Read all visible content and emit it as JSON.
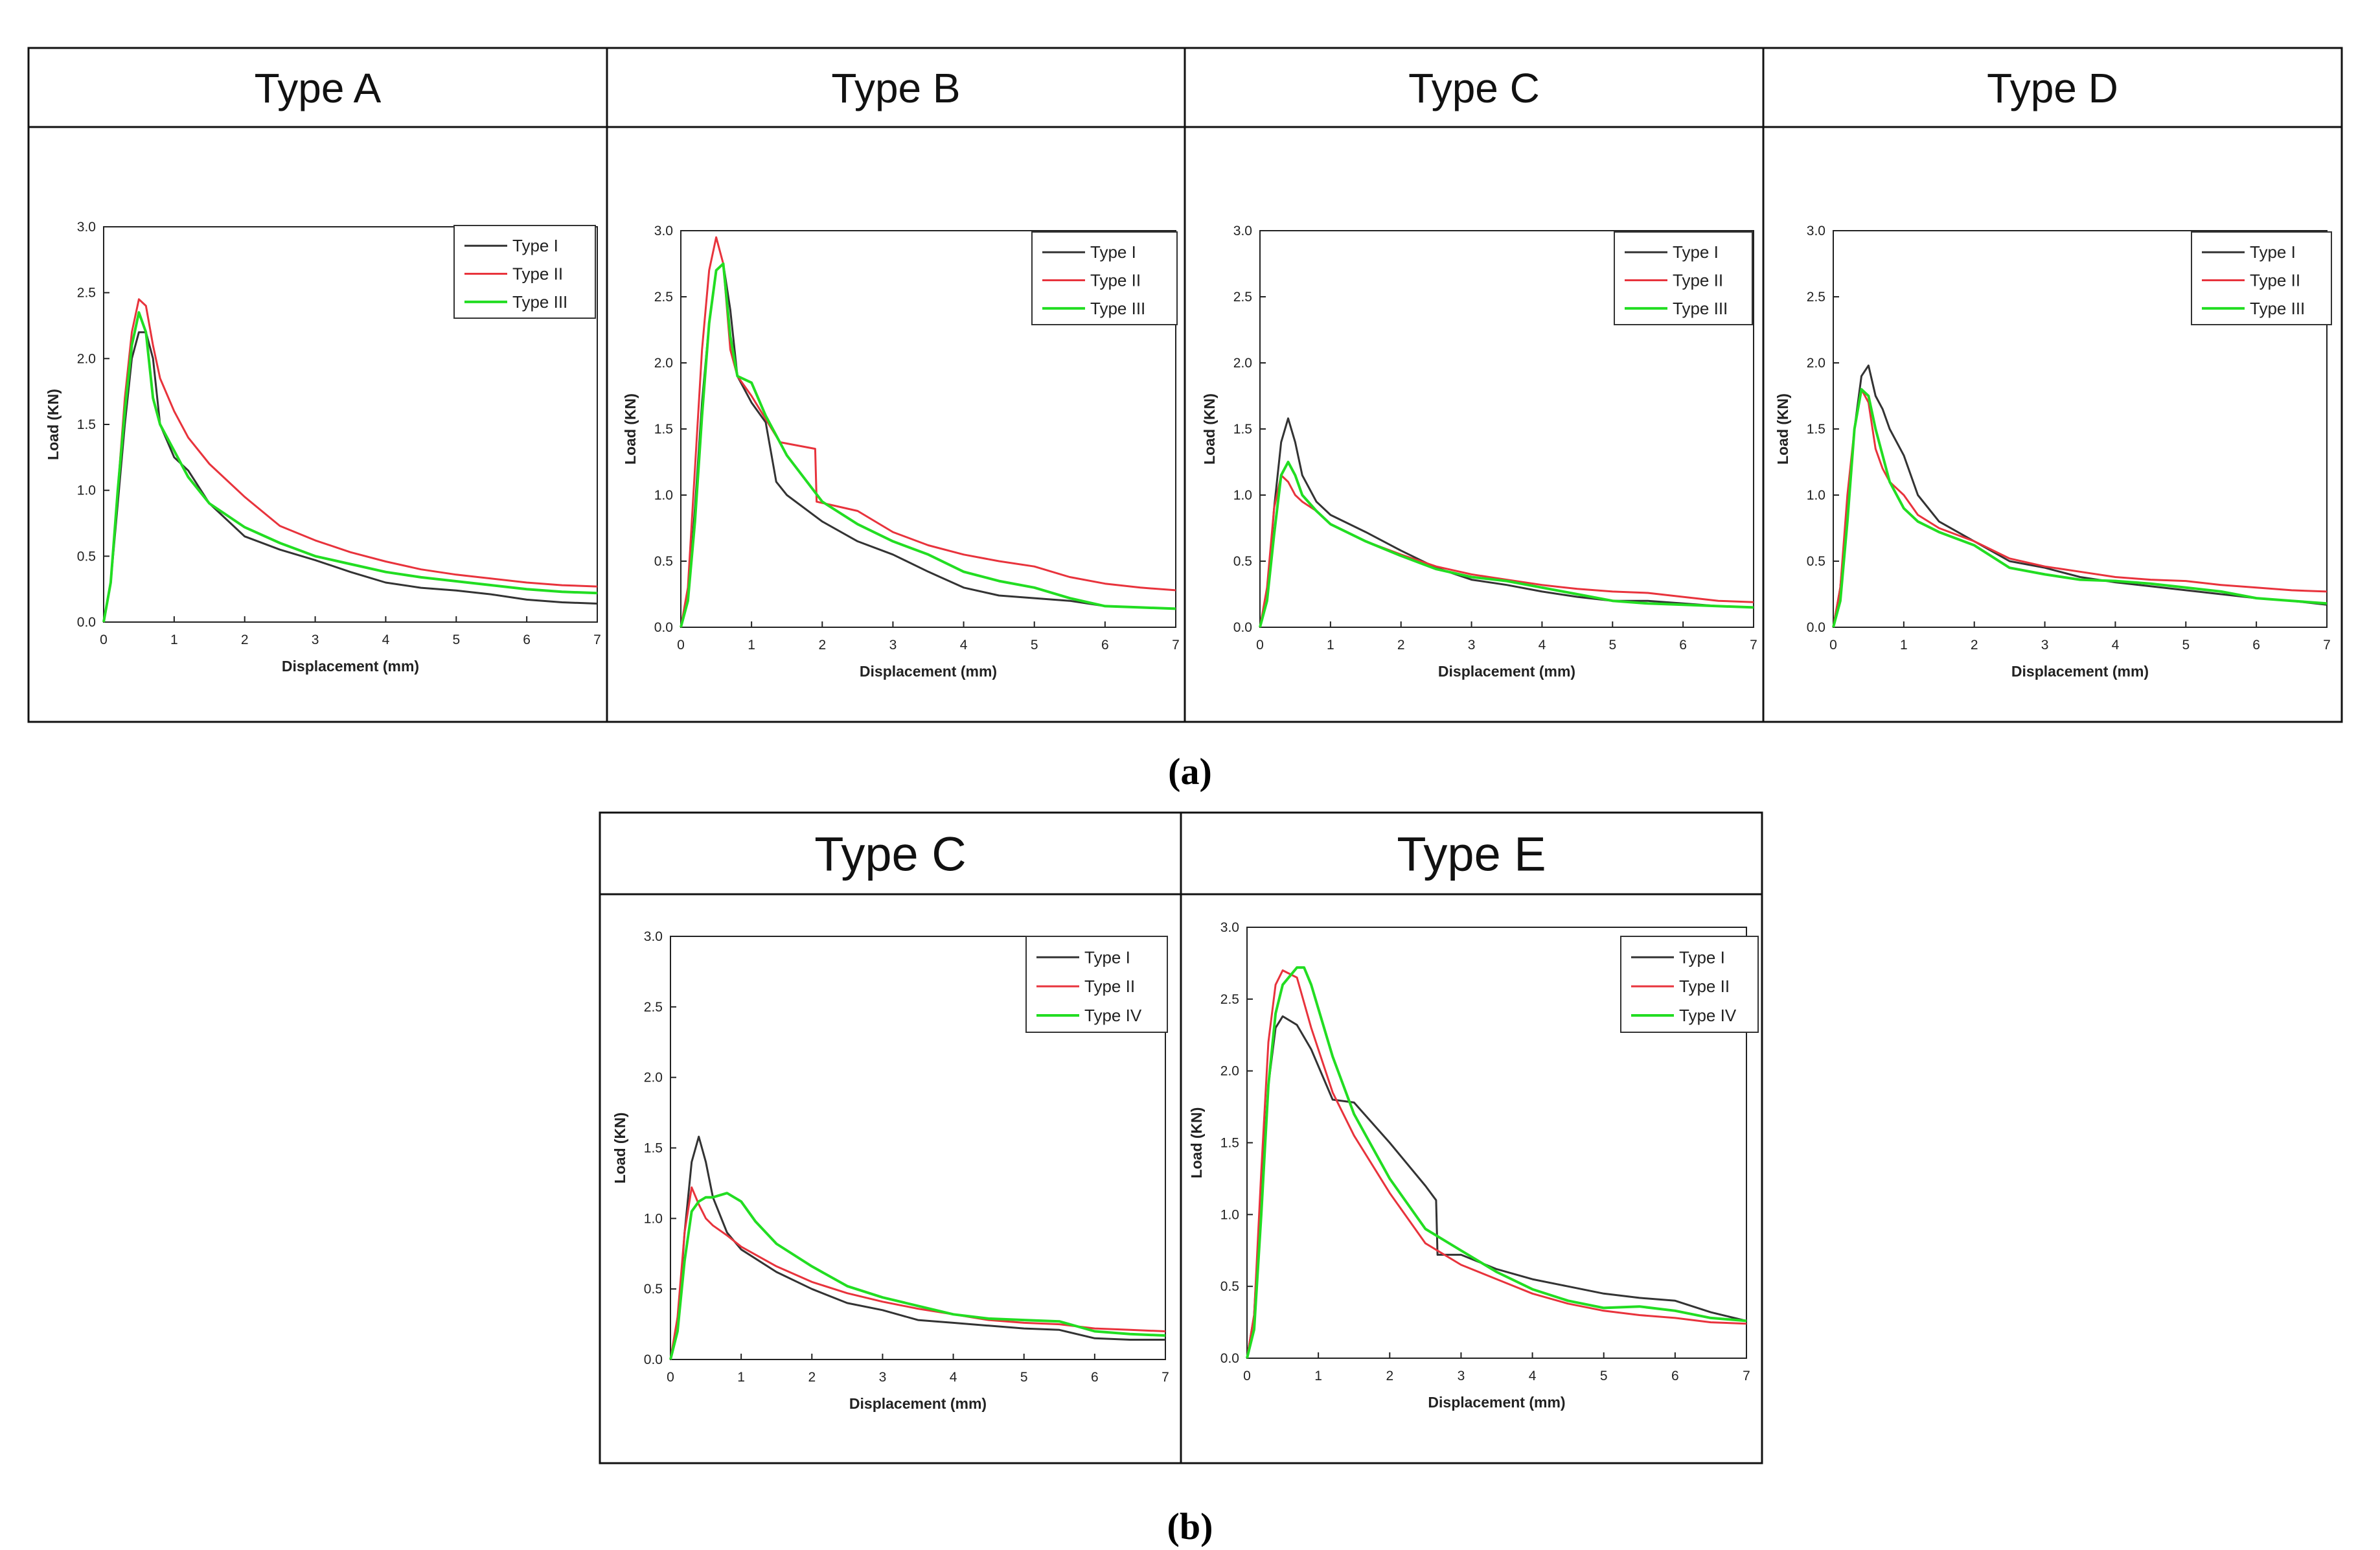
{
  "colors": {
    "type1": "#333333",
    "type2": "#e8333c",
    "type3": "#22dd22",
    "frame": "#111111"
  },
  "panel_labels": {
    "a": "(a)",
    "b": "(b)"
  },
  "chart_data": [
    {
      "id": "a1",
      "title": "Type A",
      "type": "line",
      "xlabel": "Displacement (mm)",
      "ylabel": "Load (KN)",
      "xlim": [
        0,
        7
      ],
      "ylim": [
        0,
        3
      ],
      "xticks": [
        "0",
        "1",
        "2",
        "3",
        "4",
        "5",
        "6",
        "7"
      ],
      "yticks": [
        "0.0",
        "0.5",
        "1.0",
        "1.5",
        "2.0",
        "2.5",
        "3.0"
      ],
      "series": [
        {
          "name": "Type I",
          "color_key": "type1",
          "x": [
            0,
            0.1,
            0.2,
            0.3,
            0.4,
            0.5,
            0.6,
            0.7,
            0.8,
            1.0,
            1.2,
            1.5,
            2.0,
            2.5,
            3.0,
            3.5,
            4.0,
            4.5,
            5.0,
            5.5,
            6.0,
            6.5,
            7.0
          ],
          "y": [
            0,
            0.3,
            0.9,
            1.5,
            2.0,
            2.2,
            2.2,
            2.0,
            1.5,
            1.25,
            1.15,
            0.9,
            0.65,
            0.55,
            0.47,
            0.38,
            0.3,
            0.26,
            0.24,
            0.21,
            0.17,
            0.15,
            0.14
          ]
        },
        {
          "name": "Type II",
          "color_key": "type2",
          "x": [
            0,
            0.1,
            0.2,
            0.3,
            0.4,
            0.5,
            0.6,
            0.7,
            0.8,
            1.0,
            1.2,
            1.5,
            2.0,
            2.5,
            3.0,
            3.5,
            4.0,
            4.5,
            5.0,
            5.5,
            6.0,
            6.5,
            7.0
          ],
          "y": [
            0,
            0.3,
            1.0,
            1.7,
            2.2,
            2.45,
            2.4,
            2.1,
            1.85,
            1.6,
            1.4,
            1.2,
            0.95,
            0.73,
            0.62,
            0.53,
            0.46,
            0.4,
            0.36,
            0.33,
            0.3,
            0.28,
            0.27
          ]
        },
        {
          "name": "Type III",
          "color_key": "type3",
          "x": [
            0,
            0.1,
            0.2,
            0.3,
            0.4,
            0.5,
            0.6,
            0.7,
            0.8,
            1.0,
            1.2,
            1.5,
            2.0,
            2.5,
            3.0,
            3.5,
            4.0,
            4.5,
            5.0,
            5.5,
            6.0,
            6.5,
            7.0
          ],
          "y": [
            0,
            0.3,
            1.0,
            1.6,
            2.1,
            2.35,
            2.2,
            1.7,
            1.5,
            1.3,
            1.1,
            0.9,
            0.72,
            0.6,
            0.5,
            0.44,
            0.38,
            0.34,
            0.31,
            0.28,
            0.25,
            0.23,
            0.22
          ]
        }
      ]
    },
    {
      "id": "a2",
      "title": "Type B",
      "type": "line",
      "xlabel": "Displacement (mm)",
      "ylabel": "Load (KN)",
      "xlim": [
        0,
        7
      ],
      "ylim": [
        0,
        3
      ],
      "xticks": [
        "0",
        "1",
        "2",
        "3",
        "4",
        "5",
        "6",
        "7"
      ],
      "yticks": [
        "0.0",
        "0.5",
        "1.0",
        "1.5",
        "2.0",
        "2.5",
        "3.0"
      ],
      "series": [
        {
          "name": "Type I",
          "color_key": "type1",
          "x": [
            0,
            0.1,
            0.2,
            0.3,
            0.4,
            0.5,
            0.6,
            0.7,
            0.8,
            1.0,
            1.2,
            1.35,
            1.5,
            2.0,
            2.5,
            3.0,
            3.5,
            4.0,
            4.5,
            5.0,
            5.5,
            6.0,
            6.5,
            7.0
          ],
          "y": [
            0,
            0.2,
            0.9,
            1.7,
            2.3,
            2.7,
            2.75,
            2.4,
            1.9,
            1.7,
            1.55,
            1.1,
            1.0,
            0.8,
            0.65,
            0.55,
            0.42,
            0.3,
            0.24,
            0.22,
            0.2,
            0.16,
            0.15,
            0.14
          ]
        },
        {
          "name": "Type II",
          "color_key": "type2",
          "x": [
            0,
            0.1,
            0.2,
            0.3,
            0.4,
            0.5,
            0.6,
            0.7,
            0.8,
            1.0,
            1.4,
            1.6,
            1.9,
            1.92,
            2.5,
            3.0,
            3.5,
            4.0,
            4.5,
            5.0,
            5.5,
            6.0,
            6.5,
            7.0
          ],
          "y": [
            0,
            0.3,
            1.2,
            2.1,
            2.7,
            2.95,
            2.75,
            2.1,
            1.9,
            1.75,
            1.4,
            1.38,
            1.35,
            0.95,
            0.88,
            0.72,
            0.62,
            0.55,
            0.5,
            0.46,
            0.38,
            0.33,
            0.3,
            0.28
          ]
        },
        {
          "name": "Type III",
          "color_key": "type3",
          "x": [
            0,
            0.1,
            0.2,
            0.3,
            0.4,
            0.5,
            0.6,
            0.7,
            0.8,
            1.0,
            1.2,
            1.5,
            2.0,
            2.5,
            3.0,
            3.5,
            4.0,
            4.5,
            5.0,
            5.5,
            6.0,
            6.5,
            7.0
          ],
          "y": [
            0,
            0.2,
            0.8,
            1.6,
            2.3,
            2.7,
            2.75,
            2.2,
            1.9,
            1.85,
            1.6,
            1.3,
            0.95,
            0.78,
            0.65,
            0.55,
            0.42,
            0.35,
            0.3,
            0.22,
            0.16,
            0.15,
            0.14
          ]
        }
      ]
    },
    {
      "id": "a3",
      "title": "Type C",
      "type": "line",
      "xlabel": "Displacement (mm)",
      "ylabel": "Load (KN)",
      "xlim": [
        0,
        7
      ],
      "ylim": [
        0,
        3
      ],
      "xticks": [
        "0",
        "1",
        "2",
        "3",
        "4",
        "5",
        "6",
        "7"
      ],
      "yticks": [
        "0.0",
        "0.5",
        "1.0",
        "1.5",
        "2.0",
        "2.5",
        "3.0"
      ],
      "series": [
        {
          "name": "Type I",
          "color_key": "type1",
          "x": [
            0,
            0.1,
            0.2,
            0.3,
            0.4,
            0.5,
            0.6,
            0.8,
            1.0,
            1.5,
            2.0,
            2.5,
            3.0,
            3.5,
            4.0,
            4.5,
            5.0,
            5.5,
            6.0,
            6.5,
            7.0
          ],
          "y": [
            0,
            0.2,
            0.9,
            1.4,
            1.58,
            1.4,
            1.15,
            0.95,
            0.85,
            0.72,
            0.58,
            0.45,
            0.36,
            0.32,
            0.27,
            0.23,
            0.2,
            0.2,
            0.18,
            0.16,
            0.15
          ]
        },
        {
          "name": "Type II",
          "color_key": "type2",
          "x": [
            0,
            0.1,
            0.2,
            0.3,
            0.4,
            0.5,
            0.6,
            0.8,
            1.0,
            1.5,
            2.0,
            2.5,
            3.0,
            3.5,
            4.0,
            4.5,
            5.0,
            5.5,
            6.0,
            6.5,
            7.0
          ],
          "y": [
            0,
            0.3,
            0.9,
            1.15,
            1.1,
            1.0,
            0.95,
            0.88,
            0.78,
            0.65,
            0.55,
            0.46,
            0.4,
            0.36,
            0.32,
            0.29,
            0.27,
            0.26,
            0.23,
            0.2,
            0.19
          ]
        },
        {
          "name": "Type III",
          "color_key": "type3",
          "x": [
            0,
            0.1,
            0.2,
            0.3,
            0.4,
            0.5,
            0.6,
            0.8,
            1.0,
            1.5,
            2.0,
            2.5,
            3.0,
            3.5,
            4.0,
            4.5,
            5.0,
            5.5,
            6.0,
            6.5,
            7.0
          ],
          "y": [
            0,
            0.2,
            0.7,
            1.15,
            1.25,
            1.15,
            1.0,
            0.88,
            0.78,
            0.65,
            0.54,
            0.44,
            0.38,
            0.35,
            0.3,
            0.25,
            0.2,
            0.18,
            0.17,
            0.16,
            0.15
          ]
        }
      ]
    },
    {
      "id": "a4",
      "title": "Type D",
      "type": "line",
      "xlabel": "Displacement (mm)",
      "ylabel": "Load (KN)",
      "xlim": [
        0,
        7
      ],
      "ylim": [
        0,
        3
      ],
      "xticks": [
        "0",
        "1",
        "2",
        "3",
        "4",
        "5",
        "6",
        "7"
      ],
      "yticks": [
        "0.0",
        "0.5",
        "1.0",
        "1.5",
        "2.0",
        "2.5",
        "3.0"
      ],
      "series": [
        {
          "name": "Type I",
          "color_key": "type1",
          "x": [
            0,
            0.1,
            0.2,
            0.3,
            0.4,
            0.5,
            0.6,
            0.7,
            0.8,
            1.0,
            1.2,
            1.5,
            2.0,
            2.5,
            3.0,
            3.5,
            4.0,
            4.5,
            5.0,
            5.5,
            6.0,
            6.5,
            7.0
          ],
          "y": [
            0,
            0.3,
            0.9,
            1.5,
            1.9,
            1.98,
            1.75,
            1.65,
            1.5,
            1.3,
            1.0,
            0.8,
            0.65,
            0.5,
            0.45,
            0.38,
            0.34,
            0.31,
            0.28,
            0.25,
            0.22,
            0.2,
            0.17
          ]
        },
        {
          "name": "Type II",
          "color_key": "type2",
          "x": [
            0,
            0.1,
            0.2,
            0.3,
            0.4,
            0.5,
            0.6,
            0.7,
            0.8,
            1.0,
            1.2,
            1.5,
            2.0,
            2.5,
            3.0,
            3.5,
            4.0,
            4.5,
            5.0,
            5.5,
            6.0,
            6.5,
            7.0
          ],
          "y": [
            0,
            0.3,
            1.0,
            1.5,
            1.8,
            1.7,
            1.35,
            1.2,
            1.1,
            1.0,
            0.85,
            0.75,
            0.65,
            0.52,
            0.46,
            0.42,
            0.38,
            0.36,
            0.35,
            0.32,
            0.3,
            0.28,
            0.27
          ]
        },
        {
          "name": "Type III",
          "color_key": "type3",
          "x": [
            0,
            0.1,
            0.2,
            0.3,
            0.4,
            0.5,
            0.6,
            0.7,
            0.8,
            1.0,
            1.2,
            1.5,
            2.0,
            2.5,
            3.0,
            3.5,
            4.0,
            4.5,
            5.0,
            5.5,
            6.0,
            6.5,
            7.0
          ],
          "y": [
            0,
            0.2,
            0.8,
            1.5,
            1.8,
            1.75,
            1.5,
            1.3,
            1.1,
            0.9,
            0.8,
            0.72,
            0.62,
            0.45,
            0.4,
            0.36,
            0.35,
            0.33,
            0.3,
            0.27,
            0.22,
            0.2,
            0.18
          ]
        }
      ]
    },
    {
      "id": "b1",
      "title": "Type C",
      "type": "line",
      "xlabel": "Displacement (mm)",
      "ylabel": "Load (KN)",
      "xlim": [
        0,
        7
      ],
      "ylim": [
        0,
        3
      ],
      "xticks": [
        "0",
        "1",
        "2",
        "3",
        "4",
        "5",
        "6",
        "7"
      ],
      "yticks": [
        "0.0",
        "0.5",
        "1.0",
        "1.5",
        "2.0",
        "2.5",
        "3.0"
      ],
      "series": [
        {
          "name": "Type I",
          "color_key": "type1",
          "x": [
            0,
            0.1,
            0.2,
            0.3,
            0.4,
            0.5,
            0.6,
            0.8,
            1.0,
            1.5,
            2.0,
            2.5,
            3.0,
            3.5,
            4.0,
            4.5,
            5.0,
            5.5,
            6.0,
            6.5,
            7.0
          ],
          "y": [
            0,
            0.2,
            0.9,
            1.4,
            1.58,
            1.4,
            1.15,
            0.9,
            0.78,
            0.62,
            0.5,
            0.4,
            0.35,
            0.28,
            0.26,
            0.24,
            0.22,
            0.21,
            0.15,
            0.14,
            0.14
          ]
        },
        {
          "name": "Type II",
          "color_key": "type2",
          "x": [
            0,
            0.1,
            0.2,
            0.3,
            0.4,
            0.5,
            0.6,
            0.8,
            1.0,
            1.5,
            2.0,
            2.5,
            3.0,
            3.5,
            4.0,
            4.5,
            5.0,
            5.5,
            6.0,
            6.5,
            7.0
          ],
          "y": [
            0,
            0.3,
            0.9,
            1.22,
            1.1,
            1.0,
            0.95,
            0.88,
            0.8,
            0.66,
            0.55,
            0.47,
            0.41,
            0.36,
            0.32,
            0.28,
            0.26,
            0.25,
            0.22,
            0.21,
            0.2
          ]
        },
        {
          "name": "Type IV",
          "color_key": "type3",
          "x": [
            0,
            0.1,
            0.2,
            0.3,
            0.4,
            0.5,
            0.6,
            0.8,
            1.0,
            1.2,
            1.5,
            2.0,
            2.5,
            3.0,
            3.5,
            4.0,
            4.5,
            5.0,
            5.5,
            6.0,
            6.5,
            7.0
          ],
          "y": [
            0,
            0.2,
            0.7,
            1.05,
            1.12,
            1.15,
            1.15,
            1.18,
            1.12,
            0.98,
            0.82,
            0.66,
            0.52,
            0.44,
            0.38,
            0.32,
            0.29,
            0.28,
            0.27,
            0.2,
            0.18,
            0.17
          ]
        }
      ]
    },
    {
      "id": "b2",
      "title": "Type E",
      "type": "line",
      "xlabel": "Displacement (mm)",
      "ylabel": "Load (KN)",
      "xlim": [
        0,
        7
      ],
      "ylim": [
        0,
        3
      ],
      "xticks": [
        "0",
        "1",
        "2",
        "3",
        "4",
        "5",
        "6",
        "7"
      ],
      "yticks": [
        "0.0",
        "0.5",
        "1.0",
        "1.5",
        "2.0",
        "2.5",
        "3.0"
      ],
      "series": [
        {
          "name": "Type I",
          "color_key": "type1",
          "x": [
            0,
            0.1,
            0.2,
            0.3,
            0.4,
            0.5,
            0.7,
            0.9,
            1.2,
            1.5,
            2.0,
            2.5,
            2.65,
            2.67,
            3.0,
            3.5,
            4.0,
            4.5,
            5.0,
            5.5,
            6.0,
            6.5,
            7.0
          ],
          "y": [
            0,
            0.3,
            1.2,
            1.9,
            2.3,
            2.38,
            2.32,
            2.15,
            1.8,
            1.78,
            1.5,
            1.2,
            1.1,
            0.72,
            0.72,
            0.62,
            0.55,
            0.5,
            0.45,
            0.42,
            0.4,
            0.32,
            0.26
          ]
        },
        {
          "name": "Type II",
          "color_key": "type2",
          "x": [
            0,
            0.1,
            0.2,
            0.3,
            0.4,
            0.5,
            0.7,
            0.9,
            1.2,
            1.5,
            2.0,
            2.5,
            3.0,
            3.5,
            4.0,
            4.5,
            5.0,
            5.5,
            6.0,
            6.5,
            7.0
          ],
          "y": [
            0,
            0.3,
            1.3,
            2.2,
            2.6,
            2.7,
            2.65,
            2.3,
            1.85,
            1.55,
            1.15,
            0.8,
            0.65,
            0.55,
            0.45,
            0.38,
            0.33,
            0.3,
            0.28,
            0.25,
            0.24
          ]
        },
        {
          "name": "Type IV",
          "color_key": "type3",
          "x": [
            0,
            0.1,
            0.2,
            0.3,
            0.4,
            0.5,
            0.7,
            0.8,
            0.9,
            1.2,
            1.5,
            2.0,
            2.5,
            3.0,
            3.5,
            4.0,
            4.5,
            5.0,
            5.5,
            6.0,
            6.5,
            7.0
          ],
          "y": [
            0,
            0.2,
            1.0,
            1.9,
            2.4,
            2.6,
            2.72,
            2.72,
            2.6,
            2.1,
            1.7,
            1.25,
            0.9,
            0.75,
            0.6,
            0.48,
            0.4,
            0.35,
            0.36,
            0.33,
            0.28,
            0.26
          ]
        }
      ]
    }
  ]
}
